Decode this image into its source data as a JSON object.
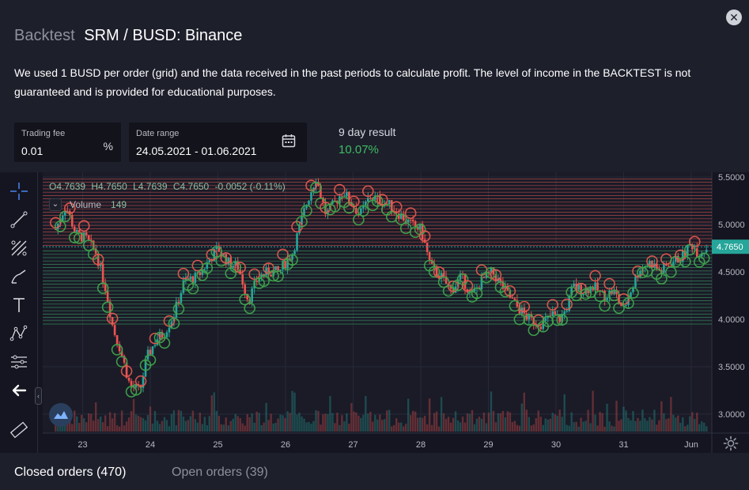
{
  "header": {
    "title_prefix": "Backtest",
    "title": "SRM / BUSD: Binance",
    "description": "We used 1 BUSD per order (grid) and the data received in the past periods to calculate profit. The level of income in the BACKTEST is not guaranteed and is provided for educational purposes.",
    "close_icon": "close-icon"
  },
  "controls": {
    "trading_fee": {
      "label": "Trading fee",
      "value": "0.01",
      "suffix": "%"
    },
    "date_range": {
      "label": "Date range",
      "value": "24.05.2021 - 01.06.2021",
      "icon": "calendar-icon"
    },
    "result": {
      "label": "9 day result",
      "value": "10.07%"
    }
  },
  "chart": {
    "legend": {
      "o": "O4.7639",
      "h": "H4.7650",
      "l": "L4.7639",
      "c": "C4.7650",
      "change": "-0.0052 (-0.11%)"
    },
    "volume_label": "Volume",
    "volume_value": "149",
    "last_price": "4.7650",
    "tools": [
      "crosshair-icon",
      "trend-line-icon",
      "pitchfork-icon",
      "brush-icon",
      "text-icon",
      "pattern-icon",
      "measure-icon",
      "back-arrow-icon",
      "ruler-icon"
    ],
    "colors": {
      "up": "#26a69a",
      "down": "#ef5350",
      "buy": "#3fa34d",
      "sell": "#e2594f",
      "grid_sell": "#d9534f",
      "grid_buy": "#3ea76a",
      "price_badge": "#26a69a"
    }
  },
  "chart_data": {
    "type": "candlestick",
    "x_ticks": [
      "23",
      "24",
      "25",
      "26",
      "27",
      "28",
      "29",
      "30",
      "31",
      "Jun"
    ],
    "y_ticks": [
      "5.5000",
      "5.0000",
      "4.5000",
      "4.0000",
      "3.5000",
      "3.0000"
    ],
    "ylim": [
      2.8,
      5.55
    ],
    "price_path": [
      [
        22.6,
        4.95
      ],
      [
        22.75,
        5.2
      ],
      [
        22.9,
        4.9
      ],
      [
        23.05,
        4.85
      ],
      [
        23.2,
        4.7
      ],
      [
        23.35,
        4.3
      ],
      [
        23.45,
        3.9
      ],
      [
        23.55,
        3.7
      ],
      [
        23.7,
        3.3
      ],
      [
        23.85,
        3.25
      ],
      [
        23.95,
        3.6
      ],
      [
        24.1,
        3.8
      ],
      [
        24.2,
        3.85
      ],
      [
        24.35,
        4.05
      ],
      [
        24.5,
        4.4
      ],
      [
        24.7,
        4.45
      ],
      [
        24.85,
        4.6
      ],
      [
        25.0,
        4.75
      ],
      [
        25.15,
        4.6
      ],
      [
        25.3,
        4.55
      ],
      [
        25.45,
        4.2
      ],
      [
        25.6,
        4.45
      ],
      [
        25.75,
        4.5
      ],
      [
        25.9,
        4.5
      ],
      [
        26.1,
        4.7
      ],
      [
        26.3,
        5.2
      ],
      [
        26.45,
        5.5
      ],
      [
        26.6,
        5.1
      ],
      [
        26.75,
        5.25
      ],
      [
        26.85,
        5.35
      ],
      [
        26.95,
        5.25
      ],
      [
        27.1,
        5.1
      ],
      [
        27.25,
        5.3
      ],
      [
        27.4,
        5.25
      ],
      [
        27.55,
        5.2
      ],
      [
        27.7,
        5.1
      ],
      [
        27.85,
        5.0
      ],
      [
        28.0,
        4.95
      ],
      [
        28.15,
        4.55
      ],
      [
        28.3,
        4.45
      ],
      [
        28.45,
        4.3
      ],
      [
        28.6,
        4.45
      ],
      [
        28.75,
        4.25
      ],
      [
        28.9,
        4.4
      ],
      [
        29.05,
        4.5
      ],
      [
        29.2,
        4.35
      ],
      [
        29.4,
        4.15
      ],
      [
        29.6,
        4.0
      ],
      [
        29.8,
        3.95
      ],
      [
        29.95,
        4.05
      ],
      [
        30.05,
        4.0
      ],
      [
        30.15,
        4.1
      ],
      [
        30.25,
        4.35
      ],
      [
        30.4,
        4.3
      ],
      [
        30.55,
        4.35
      ],
      [
        30.7,
        4.25
      ],
      [
        30.85,
        4.3
      ],
      [
        31.0,
        4.1
      ],
      [
        31.1,
        4.3
      ],
      [
        31.25,
        4.55
      ],
      [
        31.4,
        4.6
      ],
      [
        31.55,
        4.5
      ],
      [
        31.7,
        4.6
      ],
      [
        31.85,
        4.65
      ],
      [
        32.0,
        4.8
      ],
      [
        32.1,
        4.7
      ],
      [
        32.25,
        4.76
      ]
    ],
    "grid_levels": {
      "sell_from": 4.78,
      "sell_to": 5.5,
      "buy_from": 3.95,
      "buy_to": 4.72,
      "step": 0.035
    }
  },
  "footer": {
    "closed_orders": "Closed orders (470)",
    "open_orders": "Open orders (39)"
  }
}
